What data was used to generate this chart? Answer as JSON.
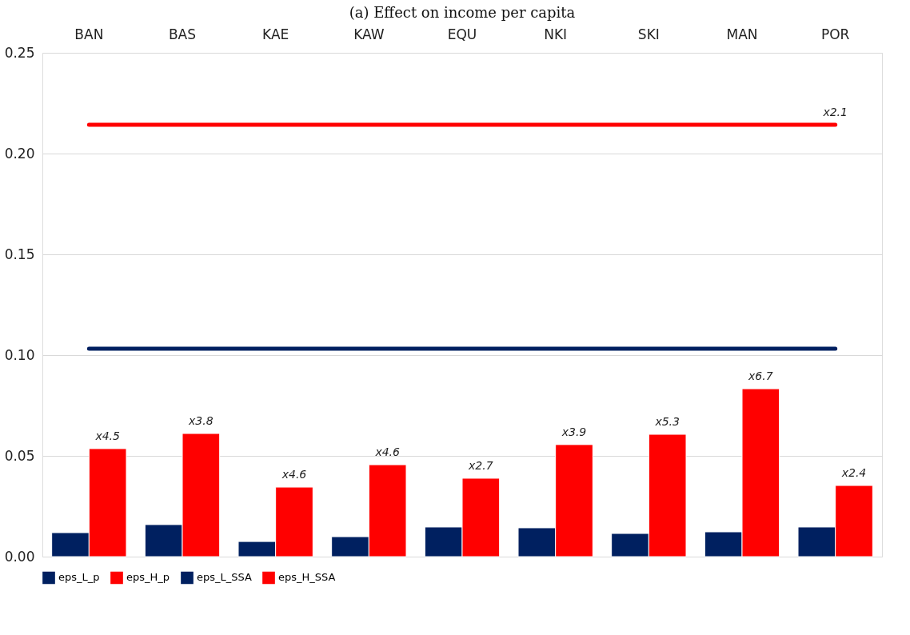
{
  "chart_data": {
    "type": "bar",
    "title": "(a) Effect on income per capita",
    "categories": [
      "BAN",
      "BAS",
      "KAE",
      "KAW",
      "EQU",
      "NKI",
      "SKI",
      "MAN",
      "POR"
    ],
    "series": [
      {
        "name": "eps_L_p",
        "color": "#002060",
        "values": [
          0.0119,
          0.0159,
          0.0075,
          0.0099,
          0.0147,
          0.0143,
          0.0115,
          0.0123,
          0.0147
        ]
      },
      {
        "name": "eps_H_p",
        "color": "#ff0000",
        "values": [
          0.0536,
          0.0611,
          0.0345,
          0.0456,
          0.0389,
          0.0556,
          0.0607,
          0.0833,
          0.0353
        ]
      },
      {
        "name": "eps_L_SSA",
        "type": "line",
        "color": "#002060",
        "values": [
          0.1032,
          0.1032,
          0.1032,
          0.1032,
          0.1032,
          0.1032,
          0.1032,
          0.1032,
          0.1032
        ]
      },
      {
        "name": "eps_H_SSA",
        "type": "line",
        "color": "#ff0000",
        "values": [
          0.2143,
          0.2143,
          0.2143,
          0.2143,
          0.2143,
          0.2143,
          0.2143,
          0.2143,
          0.2143
        ]
      }
    ],
    "annotations": [
      {
        "text": "x4.5",
        "x": "BAN",
        "y": 0.0536
      },
      {
        "text": "x3.8",
        "x": "BAS",
        "y": 0.0611
      },
      {
        "text": "x4.6",
        "x": "KAE",
        "y": 0.0345
      },
      {
        "text": "x4.6",
        "x": "KAW",
        "y": 0.0456
      },
      {
        "text": "x2.7",
        "x": "EQU",
        "y": 0.0389
      },
      {
        "text": "x3.9",
        "x": "NKI",
        "y": 0.0556
      },
      {
        "text": "x5.3",
        "x": "SKI",
        "y": 0.0607
      },
      {
        "text": "x6.7",
        "x": "MAN",
        "y": 0.0833
      },
      {
        "text": "x2.4",
        "x": "POR",
        "y": 0.0353
      },
      {
        "text": "x2.1",
        "x": "POR",
        "y": 0.2143
      }
    ],
    "ylim": [
      0,
      0.25
    ],
    "yticks": [
      {
        "value": 0,
        "label": "0.00"
      },
      0.05,
      {
        "value": 0.1,
        "label": "0.10"
      },
      0.15,
      {
        "value": 0.2,
        "label": "0.20"
      },
      0.25
    ],
    "grid": "y",
    "legend": "bottom"
  }
}
